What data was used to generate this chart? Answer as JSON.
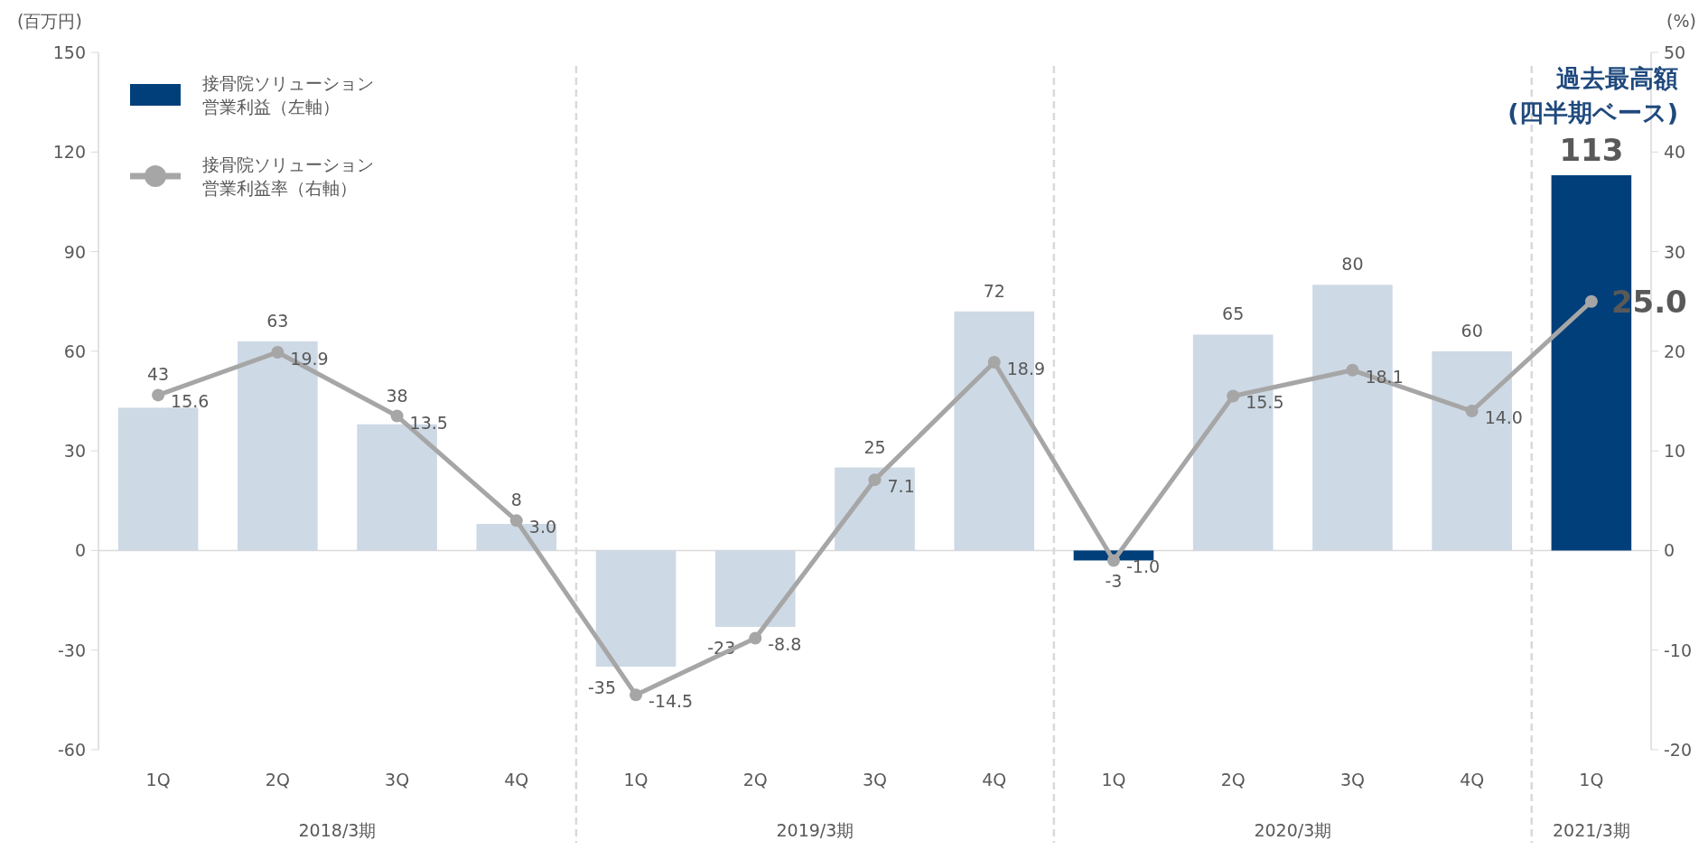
{
  "chart_data": {
    "type": "bar",
    "categories": [
      "1Q",
      "2Q",
      "3Q",
      "4Q",
      "1Q",
      "2Q",
      "3Q",
      "4Q",
      "1Q",
      "2Q",
      "3Q",
      "4Q",
      "1Q"
    ],
    "series": [
      {
        "name": "接骨院ソリューション営業利益（左軸）",
        "color": "#003f7a",
        "colors": [
          "#cdd9e5",
          "#cdd9e5",
          "#cdd9e5",
          "#cdd9e5",
          "#cdd9e5",
          "#cdd9e5",
          "#cdd9e5",
          "#cdd9e5",
          "#003f7a",
          "#cdd9e5",
          "#cdd9e5",
          "#cdd9e5",
          "#003f7a"
        ],
        "values": [
          43,
          63,
          38,
          8,
          -35,
          -23,
          25,
          72,
          -3,
          65,
          80,
          60,
          113
        ],
        "value_labels": [
          "43",
          "63",
          "38",
          "8",
          "-35",
          "-23",
          "25",
          "72",
          "-3",
          "65",
          "80",
          "60",
          "113"
        ]
      },
      {
        "type": "line",
        "axis": "y2",
        "name": "接骨院ソリューション営業利益率（右軸）",
        "color": "#a6a6a6",
        "values": [
          15.6,
          19.9,
          13.5,
          3.0,
          -14.5,
          -8.8,
          7.1,
          18.9,
          -1.0,
          15.5,
          18.1,
          14.0,
          25.0
        ],
        "value_labels": [
          "15.6",
          "19.9",
          "13.5",
          "3.0",
          "-14.5",
          "-8.8",
          "7.1",
          "18.9",
          "-1.0",
          "15.5",
          "18.1",
          "14.0",
          "25.0"
        ]
      }
    ],
    "ylabel": "(百万円)",
    "y2label": "(%)",
    "ylim": [
      -60,
      150
    ],
    "yticks": [
      -60,
      -30,
      0,
      30,
      60,
      90,
      120,
      150
    ],
    "y2lim": [
      -20,
      50
    ],
    "y2ticks": [
      -20,
      -10,
      0,
      10,
      20,
      30,
      40,
      50
    ],
    "annotations": [
      "2018/3期",
      "2019/3期",
      "2020/3期",
      "2021/3期",
      "過去最高額(四半期ベース)"
    ],
    "legend": "top left",
    "marker": "circle",
    "grid": false
  }
}
